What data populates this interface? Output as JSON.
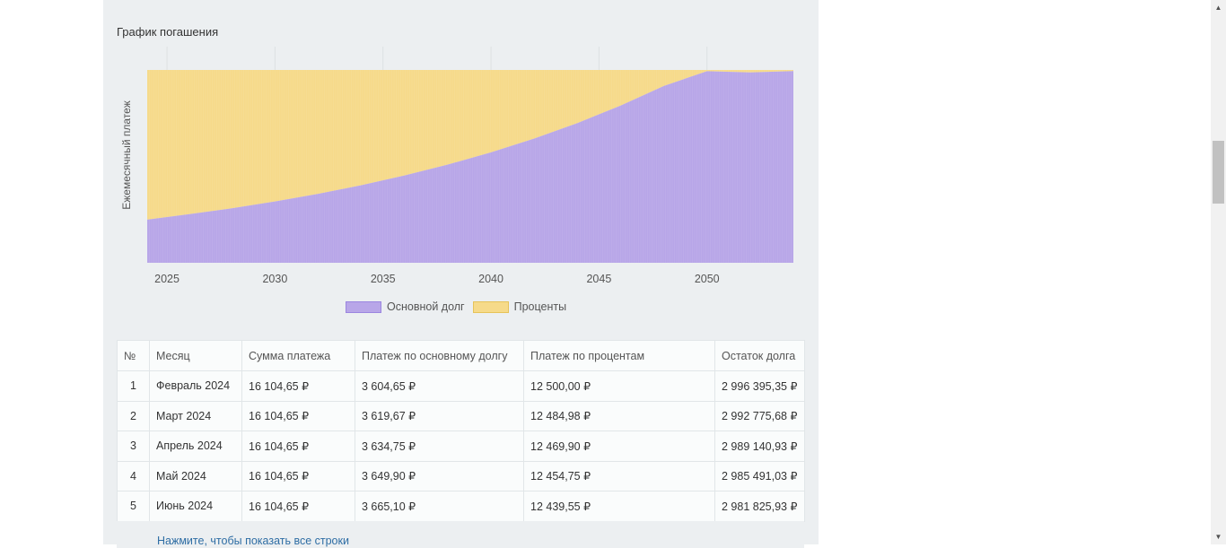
{
  "chart_title": "График погашения",
  "chart_data": {
    "type": "area",
    "stacked": true,
    "ylabel": "Ежемесячный платеж",
    "x_ticks": [
      "2025",
      "2030",
      "2035",
      "2040",
      "2045",
      "2050"
    ],
    "x_tick_values": [
      2025,
      2030,
      2035,
      2040,
      2045,
      2050
    ],
    "x_range": [
      2024.083,
      2054.0
    ],
    "y_range": [
      0,
      16104.65
    ],
    "grid": true,
    "legend_position": "bottom",
    "series": [
      {
        "name": "Основной долг",
        "color": "#b8a6e8",
        "x": [
          2024.083,
          2026,
          2028,
          2030,
          2032,
          2034,
          2036,
          2038,
          2040,
          2042,
          2044,
          2046,
          2048,
          2050,
          2052,
          2054
        ],
        "values": [
          3604.65,
          4050,
          4550,
          5120,
          5760,
          6480,
          7290,
          8200,
          9220,
          10370,
          11670,
          13130,
          14770,
          16000,
          15900,
          16010
        ]
      },
      {
        "name": "Проценты",
        "color": "#f6da8a",
        "x": [
          2024.083,
          2026,
          2028,
          2030,
          2032,
          2034,
          2036,
          2038,
          2040,
          2042,
          2044,
          2046,
          2048,
          2050,
          2052,
          2054
        ],
        "values": [
          12500.0,
          12054.65,
          11554.65,
          10984.65,
          10344.65,
          9624.65,
          8814.65,
          7904.65,
          6884.65,
          5734.65,
          4434.65,
          2974.65,
          1334.65,
          104.65,
          204.65,
          94.65
        ]
      }
    ]
  },
  "legend": [
    {
      "label": "Основной долг",
      "color": "#b8a6e8",
      "border": "#9b86e0"
    },
    {
      "label": "Проценты",
      "color": "#f6da8a",
      "border": "#e6c35a"
    }
  ],
  "table": {
    "headers": [
      "№",
      "Месяц",
      "Сумма платежа",
      "Платеж по основному долгу",
      "Платеж по процентам",
      "Остаток долга"
    ],
    "rows": [
      [
        "1",
        "Февраль 2024",
        "16 104,65 ₽",
        "3 604,65 ₽",
        "12 500,00 ₽",
        "2 996 395,35 ₽"
      ],
      [
        "2",
        "Март 2024",
        "16 104,65 ₽",
        "3 619,67 ₽",
        "12 484,98 ₽",
        "2 992 775,68 ₽"
      ],
      [
        "3",
        "Апрель 2024",
        "16 104,65 ₽",
        "3 634,75 ₽",
        "12 469,90 ₽",
        "2 989 140,93 ₽"
      ],
      [
        "4",
        "Май 2024",
        "16 104,65 ₽",
        "3 649,90 ₽",
        "12 454,75 ₽",
        "2 985 491,03 ₽"
      ],
      [
        "5",
        "Июнь 2024",
        "16 104,65 ₽",
        "3 665,10 ₽",
        "12 439,55 ₽",
        "2 981 825,93 ₽"
      ]
    ],
    "show_all_label": "Нажмите, чтобы показать все строки"
  },
  "scrollbar": {
    "up_icon": "arrow-up-icon",
    "down_icon": "arrow-down-icon"
  }
}
